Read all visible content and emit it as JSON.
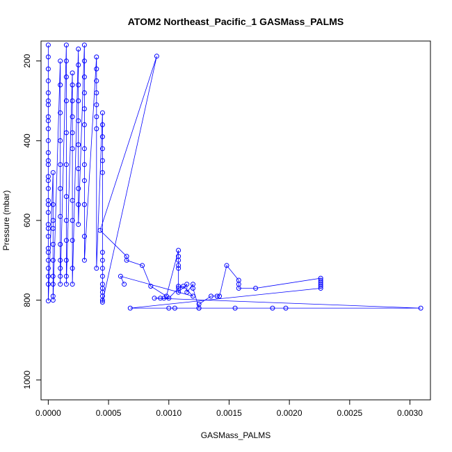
{
  "chart_data": {
    "type": "scatter",
    "title": "ATOM2 Northeast_Pacific_1 GASMass_PALMS",
    "xlabel": "GASMass_PALMS",
    "ylabel": "Pressure (mbar)",
    "xlim": [
      -6e-05,
      0.00317
    ],
    "ylim": [
      1050,
      150
    ],
    "y_reversed": true,
    "x_ticks": [
      {
        "value": 0.0,
        "label": "0.0000"
      },
      {
        "value": 0.0005,
        "label": "0.0005"
      },
      {
        "value": 0.001,
        "label": "0.0010"
      },
      {
        "value": 0.0015,
        "label": "0.0015"
      },
      {
        "value": 0.002,
        "label": "0.0020"
      },
      {
        "value": 0.0025,
        "label": "0.0025"
      },
      {
        "value": 0.003,
        "label": "0.0030"
      }
    ],
    "y_ticks": [
      {
        "value": 200,
        "label": "200"
      },
      {
        "value": 400,
        "label": "400"
      },
      {
        "value": 600,
        "label": "600"
      },
      {
        "value": 800,
        "label": "800"
      },
      {
        "value": 1000,
        "label": "1000"
      }
    ],
    "grid": false,
    "colors": {
      "series": "#0000ff",
      "frame": "#000000",
      "background": "#ffffff"
    },
    "series": [
      {
        "x": [
          0.0,
          0.0,
          0.0,
          0.0,
          0.0,
          0.0,
          0.0,
          0.0,
          0.0,
          0.0,
          0.0,
          0.0,
          0.0,
          0.0,
          0.0,
          0.0,
          0.0,
          0.0,
          0.0,
          0.0,
          0.0,
          0.0,
          0.0,
          0.0,
          0.0,
          0.0,
          0.0,
          0.0,
          0.0,
          0.0,
          4e-05,
          4e-05,
          4e-05,
          4e-05,
          4e-05,
          4e-05,
          4e-05,
          4e-05,
          4e-05,
          4e-05,
          0.0001,
          0.0001,
          0.0001,
          0.0001,
          0.0001,
          0.0001,
          0.0001,
          0.0001,
          0.0001,
          0.0001,
          0.0001,
          0.0001,
          0.00015,
          0.00015,
          0.00015,
          0.00015,
          0.00015,
          0.00015,
          0.00015,
          0.00015,
          0.00015,
          0.00015,
          0.00015,
          0.00015,
          0.0002,
          0.0002,
          0.0002,
          0.0002,
          0.0002,
          0.0002,
          0.0002,
          0.0002,
          0.0002,
          0.0002,
          0.0002,
          0.00025,
          0.00025,
          0.00025,
          0.00025,
          0.00025,
          0.00025,
          0.00025,
          0.00025,
          0.00025,
          0.00025,
          0.0003,
          0.0003,
          0.0003,
          0.0003,
          0.0003,
          0.0003,
          0.0003,
          0.0003,
          0.0003,
          0.0003,
          0.0003,
          0.0003,
          0.0004,
          0.0004,
          0.0004,
          0.0004,
          0.0004,
          0.0004,
          0.0004,
          0.0004,
          0.00045,
          0.00045,
          0.00045,
          0.00045,
          0.00045,
          0.00045,
          0.00045,
          0.00045,
          0.00045,
          0.00045,
          0.00045,
          0.00045,
          0.00045,
          0.00045,
          0.00045,
          0.00045,
          0.0009,
          0.00043,
          0.00065,
          0.00065,
          0.00078,
          0.00085,
          0.00098,
          0.00108,
          0.00108,
          0.00108,
          0.00108,
          0.00108,
          0.00108,
          0.00108,
          0.00115,
          0.00115,
          0.0012,
          0.0012,
          0.00125,
          0.00125,
          0.00135,
          0.0014,
          0.00142,
          0.00148,
          0.00158,
          0.00158,
          0.00158,
          0.00172,
          0.00226,
          0.00226,
          0.00226,
          0.00226,
          0.00226,
          0.00226,
          0.00068,
          0.001,
          0.00105,
          0.00125,
          0.00155,
          0.00186,
          0.00197,
          0.00309,
          0.00088,
          0.00093,
          0.00096,
          0.001,
          0.00108,
          0.00112,
          0.0012,
          0.0006,
          0.00063
        ],
        "y": [
          160,
          190,
          220,
          250,
          280,
          310,
          340,
          370,
          400,
          430,
          460,
          490,
          520,
          550,
          580,
          610,
          640,
          670,
          700,
          720,
          740,
          760,
          300,
          350,
          450,
          500,
          560,
          620,
          680,
          802,
          480,
          560,
          600,
          620,
          660,
          700,
          740,
          760,
          790,
          800,
          200,
          260,
          330,
          400,
          460,
          520,
          590,
          660,
          700,
          720,
          740,
          760,
          160,
          200,
          240,
          300,
          380,
          460,
          540,
          600,
          650,
          700,
          740,
          760,
          230,
          260,
          300,
          340,
          380,
          420,
          550,
          600,
          650,
          720,
          760,
          170,
          210,
          260,
          300,
          350,
          410,
          470,
          520,
          560,
          610,
          160,
          200,
          240,
          280,
          320,
          360,
          420,
          460,
          500,
          560,
          640,
          700,
          190,
          220,
          250,
          280,
          310,
          340,
          370,
          720,
          330,
          360,
          390,
          420,
          450,
          480,
          680,
          700,
          720,
          740,
          760,
          770,
          780,
          790,
          800,
          805,
          188,
          625,
          690,
          700,
          713,
          765,
          790,
          675,
          690,
          700,
          713,
          720,
          765,
          780,
          760,
          780,
          760,
          770,
          820,
          810,
          790,
          790,
          790,
          713,
          750,
          760,
          770,
          770,
          745,
          750,
          755,
          760,
          765,
          770,
          820,
          820,
          820,
          820,
          820,
          820,
          820,
          820,
          795,
          795,
          795,
          795,
          770,
          765,
          790,
          740,
          760
        ]
      }
    ]
  }
}
